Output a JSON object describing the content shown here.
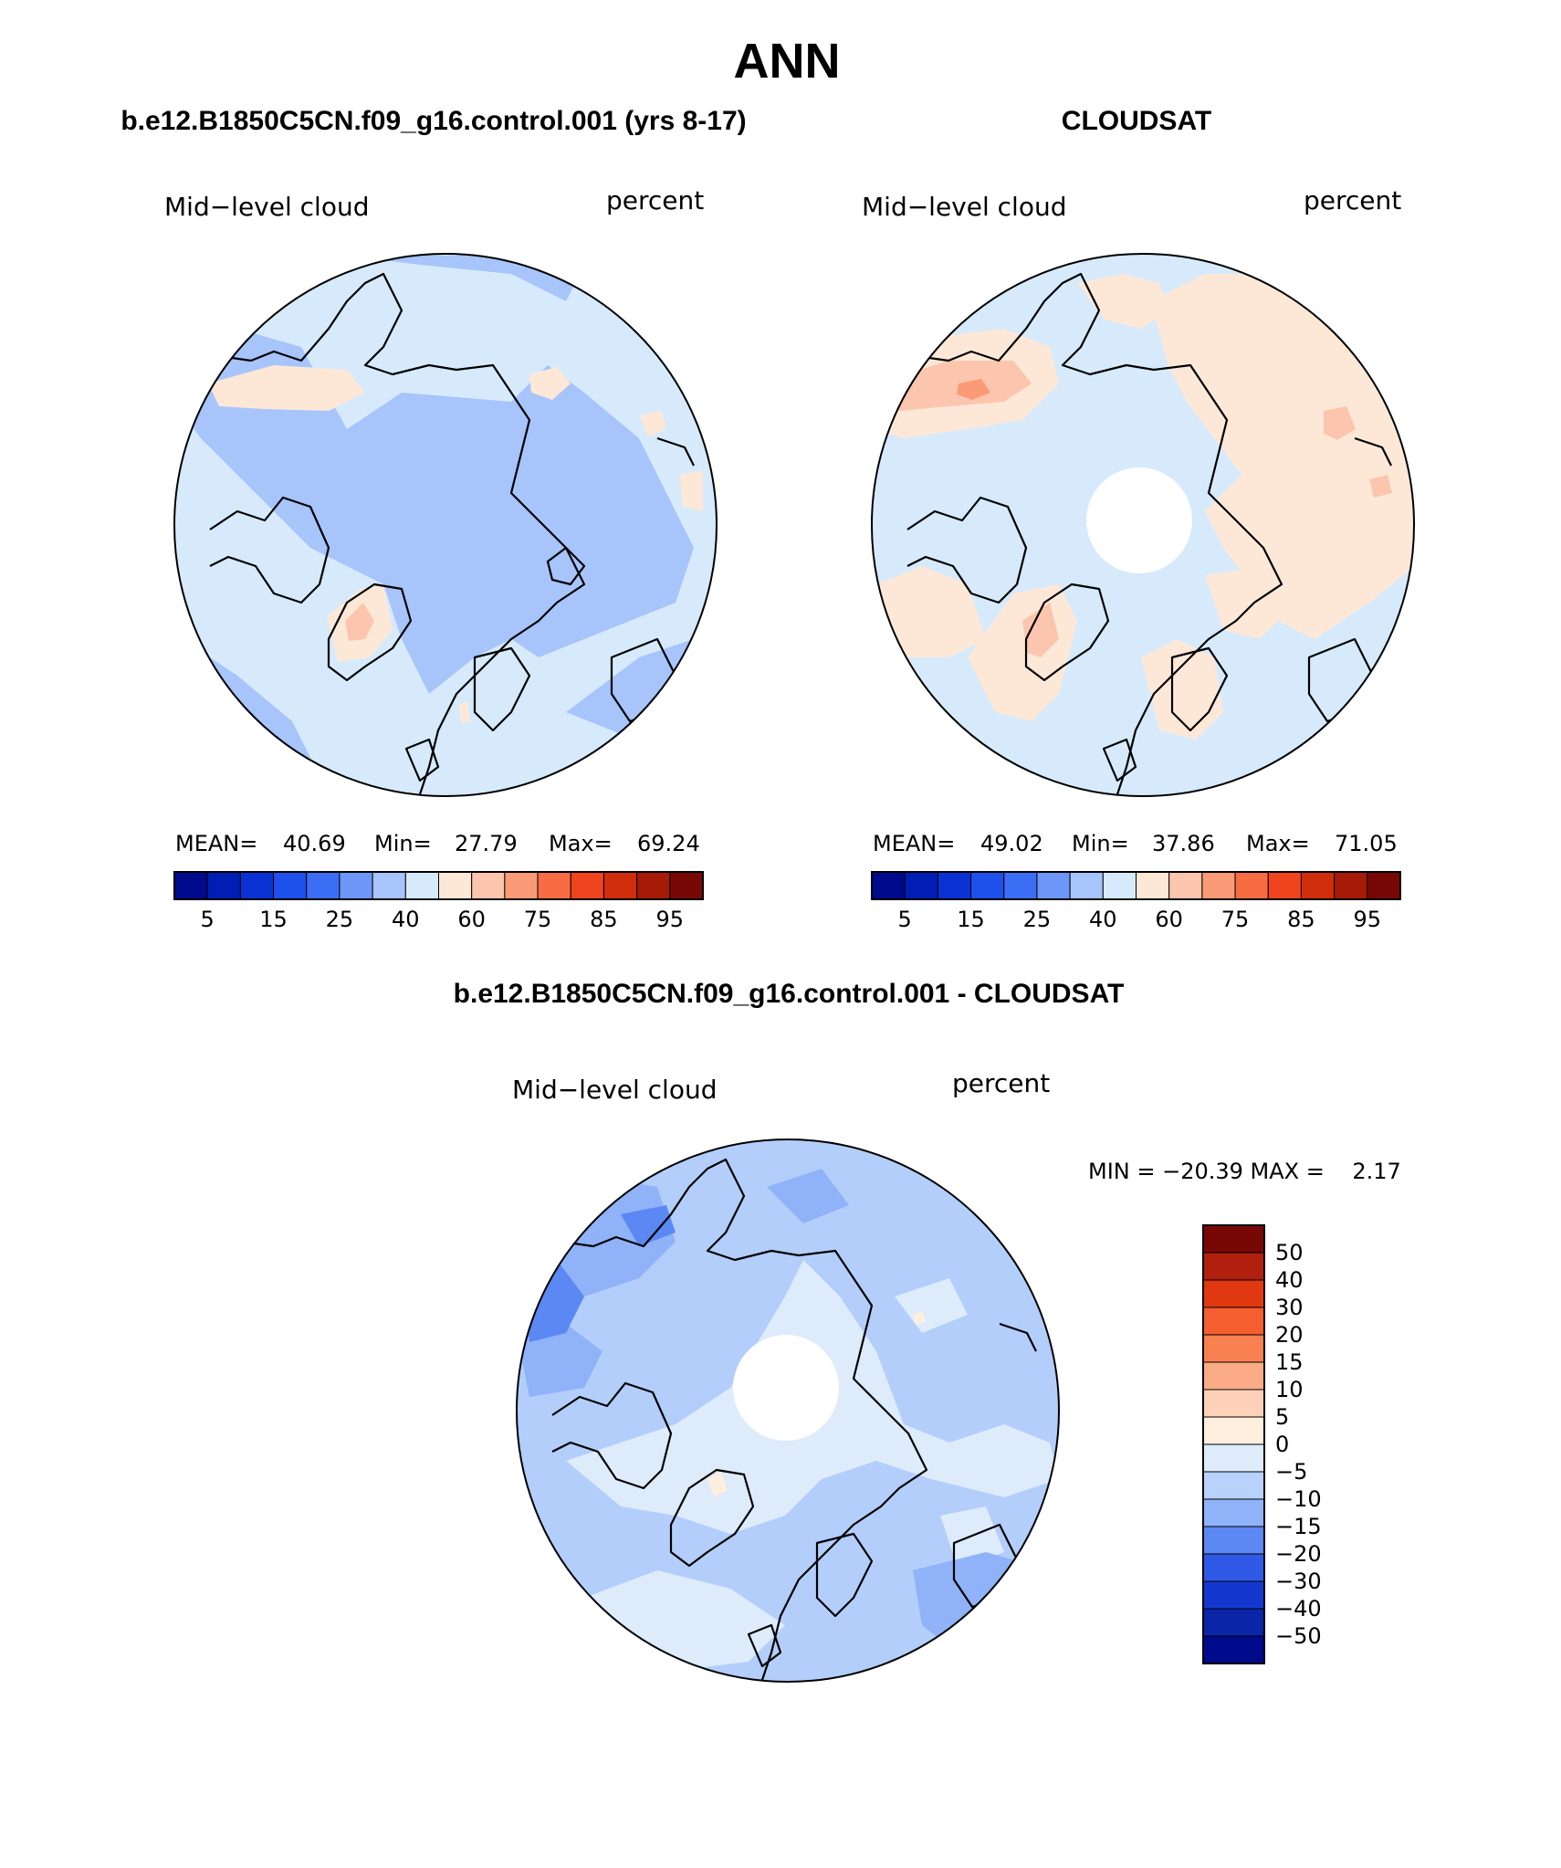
{
  "main_title": "ANN",
  "panels": [
    {
      "id": "model",
      "title": "b.e12.B1850C5CN.f09_g16.control.001 (yrs 8-17)",
      "left_label": "Mid−level cloud",
      "right_label": "percent",
      "stats": {
        "mean_label": "MEAN=",
        "mean": "40.69",
        "min_label": "Min=",
        "min": "27.79",
        "max_label": "Max=",
        "max": "69.24"
      },
      "pole_hole": false,
      "base_color": "#d6eafb"
    },
    {
      "id": "obs",
      "title": "CLOUDSAT",
      "left_label": "Mid−level cloud",
      "right_label": "percent",
      "stats": {
        "mean_label": "MEAN=",
        "mean": "49.02",
        "min_label": "Min=",
        "min": "37.86",
        "max_label": "Max=",
        "max": "71.05"
      },
      "pole_hole": true,
      "base_color": "#d6eafb"
    },
    {
      "id": "diff",
      "title": "b.e12.B1850C5CN.f09_g16.control.001 - CLOUDSAT",
      "left_label": "Mid−level cloud",
      "right_label": "percent",
      "minmax_text": "MIN = −20.39 MAX =    2.17",
      "pole_hole": true,
      "base_color": "#b3cefa"
    }
  ],
  "abs_colorbar": {
    "colors": [
      "#000a8c",
      "#001eb4",
      "#0a32d2",
      "#1e50eb",
      "#3c6ef5",
      "#6e96f8",
      "#a7c4fb",
      "#d6eafb",
      "#fde8d8",
      "#fcc5ad",
      "#fb9a76",
      "#f86c43",
      "#f0441e",
      "#d02d0c",
      "#a61a08",
      "#780806"
    ],
    "tick_labels": [
      "5",
      "15",
      "25",
      "40",
      "60",
      "75",
      "85",
      "95"
    ]
  },
  "diff_colorbar": {
    "colors_top_to_bottom": [
      "#780806",
      "#b0200c",
      "#e03810",
      "#f55f30",
      "#f98050",
      "#fbab85",
      "#fdd0b8",
      "#fdeede",
      "#ddebfb",
      "#b8d2fb",
      "#8fb2f8",
      "#5c88f3",
      "#2f5ae8",
      "#1438cf",
      "#0a25a8",
      "#000a8c"
    ],
    "tick_labels": [
      "50",
      "40",
      "30",
      "20",
      "15",
      "10",
      "5",
      "0",
      "−5",
      "−10",
      "−15",
      "−20",
      "−30",
      "−40",
      "−50"
    ]
  }
}
